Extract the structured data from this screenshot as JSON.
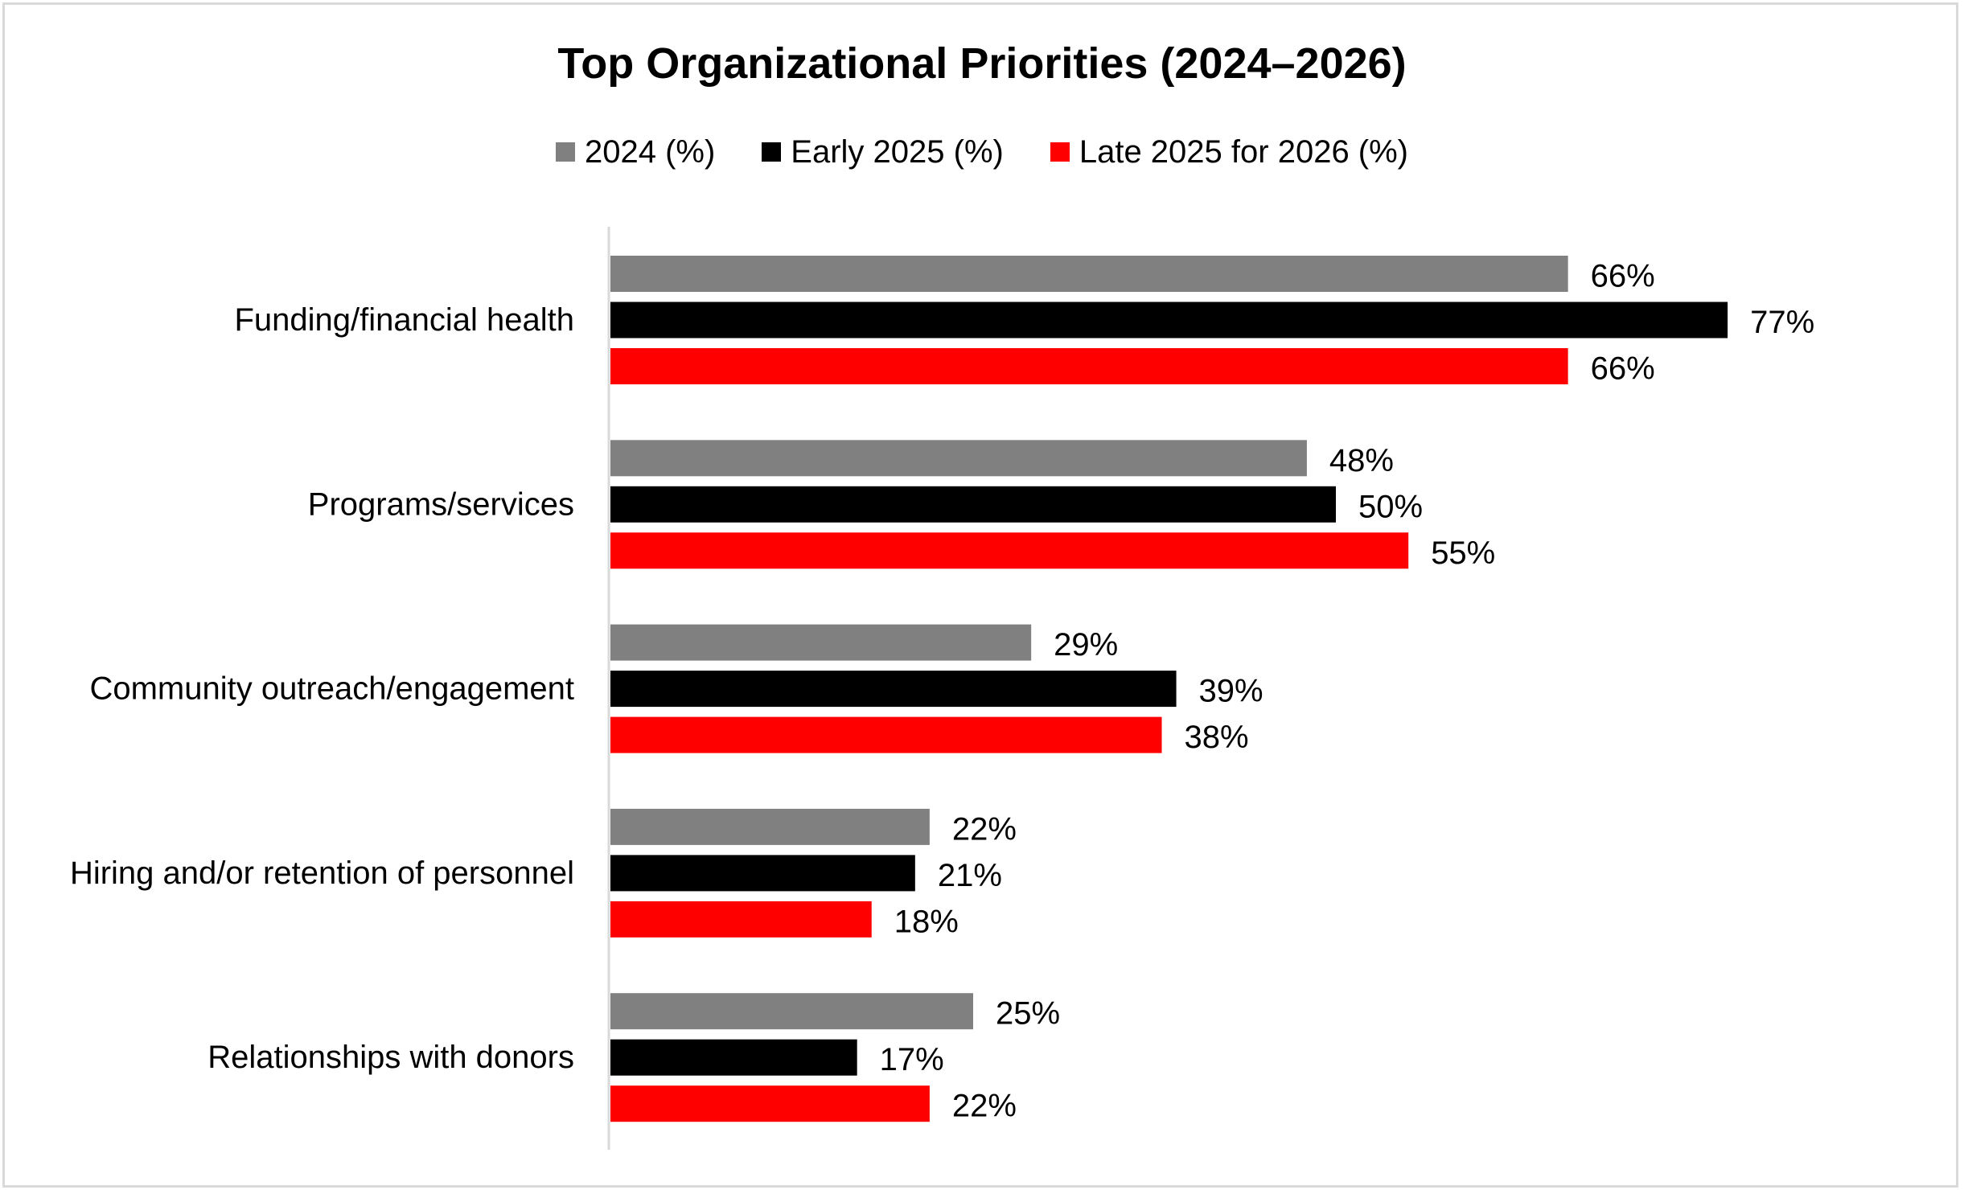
{
  "chart_data": {
    "type": "bar",
    "orientation": "horizontal",
    "title": "Top Organizational Priorities (2024–2026)",
    "xlabel": "",
    "ylabel": "",
    "xlim": [
      0,
      77
    ],
    "grid": false,
    "legend_position": "top",
    "value_suffix": "%",
    "categories": [
      "Funding/financial health",
      "Programs/services",
      "Community outreach/engagement",
      "Hiring and/or retention of personnel",
      "Relationships with donors"
    ],
    "series": [
      {
        "name": "2024 (%)",
        "color": "#808080",
        "values": [
          66,
          48,
          29,
          22,
          25
        ]
      },
      {
        "name": "Early 2025 (%)",
        "color": "#000000",
        "values": [
          77,
          50,
          39,
          21,
          17
        ]
      },
      {
        "name": "Late 2025 for 2026 (%)",
        "color": "#ff0000",
        "values": [
          66,
          55,
          38,
          18,
          22
        ]
      }
    ]
  }
}
